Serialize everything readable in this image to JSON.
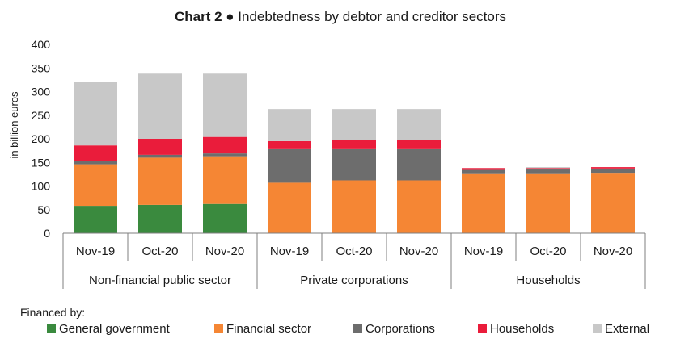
{
  "chart_data": {
    "type": "bar",
    "stacked": true,
    "title": "Chart 2 ● Indebtedness by debtor and creditor sectors",
    "title_bold_part": "Chart 2",
    "title_rest": " ● Indebtedness by debtor and creditor sectors",
    "ylabel": "in billion euros",
    "ylim": [
      0,
      400
    ],
    "yticks": [
      0,
      50,
      100,
      150,
      200,
      250,
      300,
      350,
      400
    ],
    "groups": [
      {
        "label": "Non-financial public sector",
        "categories": [
          "Nov-19",
          "Oct-20",
          "Nov-20"
        ]
      },
      {
        "label": "Private corporations",
        "categories": [
          "Nov-19",
          "Oct-20",
          "Nov-20"
        ]
      },
      {
        "label": "Households",
        "categories": [
          "Nov-19",
          "Oct-20",
          "Nov-20"
        ]
      }
    ],
    "categories": [
      "Nov-19",
      "Oct-20",
      "Nov-20",
      "Nov-19",
      "Oct-20",
      "Nov-20",
      "Nov-19",
      "Oct-20",
      "Nov-20"
    ],
    "legend_title": "Financed by:",
    "legend_position": "bottom",
    "series": [
      {
        "name": "General government",
        "color": "#3a8a3e",
        "values": [
          58,
          60,
          62,
          0,
          0,
          0,
          0,
          0,
          0
        ]
      },
      {
        "name": "Financial sector",
        "color": "#f58634",
        "values": [
          88,
          100,
          101,
          107,
          112,
          112,
          127,
          127,
          128
        ]
      },
      {
        "name": "Corporations",
        "color": "#6d6d6d",
        "values": [
          7,
          6,
          6,
          71,
          66,
          66,
          7,
          8,
          9
        ]
      },
      {
        "name": "Households",
        "color": "#ea1c3b",
        "values": [
          33,
          34,
          35,
          17,
          19,
          19,
          4,
          3,
          3
        ]
      },
      {
        "name": "External",
        "color": "#c8c8c8",
        "values": [
          134,
          138,
          134,
          68,
          66,
          66,
          0,
          2,
          0
        ]
      }
    ]
  }
}
